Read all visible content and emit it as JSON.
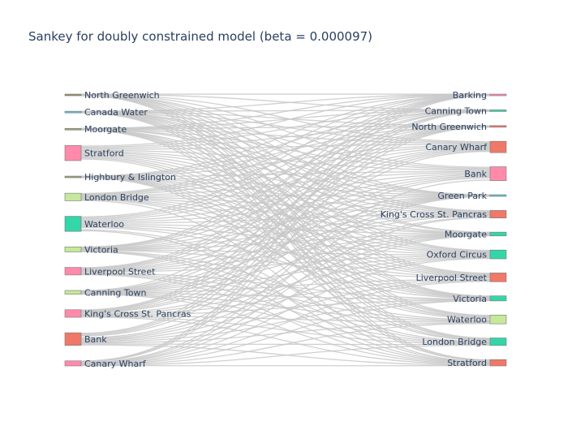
{
  "chart_data": {
    "type": "sankey",
    "title": "Sankey for doubly constrained model (beta = 0.000097)",
    "link_color": "#c8c8c8",
    "sources": [
      {
        "label": "North Greenwich",
        "color": "#9c8f6a",
        "weight": 1
      },
      {
        "label": "Canada Water",
        "color": "#5bc0de",
        "weight": 1
      },
      {
        "label": "Moorgate",
        "color": "#9aa37a",
        "weight": 1
      },
      {
        "label": "Stratford",
        "color": "#ff8aaa",
        "weight": 12
      },
      {
        "label": "Highbury & Islington",
        "color": "#9aa37a",
        "weight": 1
      },
      {
        "label": "London Bridge",
        "color": "#c6e89a",
        "weight": 6
      },
      {
        "label": "Waterloo",
        "color": "#33d6a8",
        "weight": 12
      },
      {
        "label": "Victoria",
        "color": "#c6e89a",
        "weight": 4
      },
      {
        "label": "Liverpool Street",
        "color": "#ff8aaa",
        "weight": 6
      },
      {
        "label": "Canning Town",
        "color": "#c6e89a",
        "weight": 3
      },
      {
        "label": "King's Cross St. Pancras",
        "color": "#ff8aaa",
        "weight": 6
      },
      {
        "label": "Bank",
        "color": "#f07868",
        "weight": 10
      },
      {
        "label": "Canary Wharf",
        "color": "#ff8aaa",
        "weight": 4
      }
    ],
    "targets": [
      {
        "label": "Barking",
        "color": "#ff8aaa",
        "weight": 1
      },
      {
        "label": "Canning Town",
        "color": "#33d6a8",
        "weight": 1
      },
      {
        "label": "North Greenwich",
        "color": "#f07868",
        "weight": 1
      },
      {
        "label": "Canary Wharf",
        "color": "#f07868",
        "weight": 9
      },
      {
        "label": "Bank",
        "color": "#ff8aaa",
        "weight": 11
      },
      {
        "label": "Green Park",
        "color": "#5bc0de",
        "weight": 1
      },
      {
        "label": "King's Cross St. Pancras",
        "color": "#f07868",
        "weight": 6
      },
      {
        "label": "Moorgate",
        "color": "#33d6a8",
        "weight": 3
      },
      {
        "label": "Oxford Circus",
        "color": "#33d6a8",
        "weight": 7
      },
      {
        "label": "Liverpool Street",
        "color": "#f07868",
        "weight": 7
      },
      {
        "label": "Victoria",
        "color": "#33d6a8",
        "weight": 4
      },
      {
        "label": "Waterloo",
        "color": "#c6e89a",
        "weight": 7
      },
      {
        "label": "London Bridge",
        "color": "#33d6a8",
        "weight": 6
      },
      {
        "label": "Stratford",
        "color": "#f07868",
        "weight": 5
      }
    ]
  }
}
